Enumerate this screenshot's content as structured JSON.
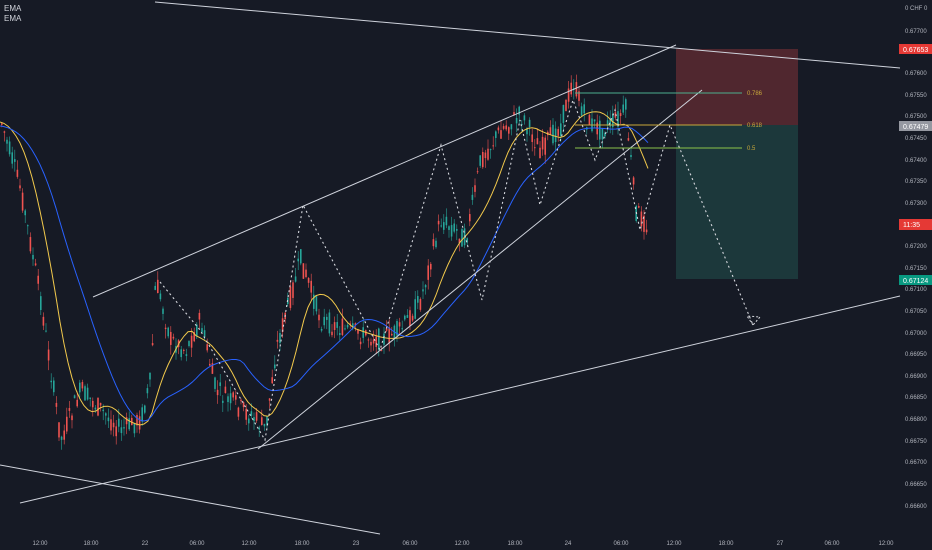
{
  "legend": {
    "ema1": "EMA",
    "ema2": "EMA"
  },
  "price_axis": {
    "header": "0 CHF 0",
    "ticks": [
      "0.67700",
      "0.67600",
      "0.67550",
      "0.67500",
      "0.67450",
      "0.67400",
      "0.67350",
      "0.67300",
      "0.67250",
      "0.67200",
      "0.67150",
      "0.67100",
      "0.67050",
      "0.67000",
      "0.66950",
      "0.66900",
      "0.66850",
      "0.66800",
      "0.66750",
      "0.66700",
      "0.66650",
      "0.66600"
    ],
    "stop_label": "0.67653",
    "entry_label": "0.67479",
    "current_label": "11:35",
    "target_label": "0.67124"
  },
  "time_axis": {
    "ticks": [
      "12:00",
      "18:00",
      "22",
      "06:00",
      "12:00",
      "18:00",
      "23",
      "06:00",
      "12:00",
      "18:00",
      "24",
      "06:00",
      "12:00",
      "18:00",
      "27",
      "06:00",
      "12:00"
    ]
  },
  "fib": {
    "l786": "0.786",
    "l618": "0.618",
    "l5": "0.5"
  },
  "colors": {
    "background": "#161a25",
    "bull": "#26a69a",
    "bear": "#ef5350",
    "ema_fast": "#f2c94c",
    "ema_slow": "#2962ff",
    "stop_zone": "#5b2a31",
    "target_zone": "#1d3c3e"
  }
}
